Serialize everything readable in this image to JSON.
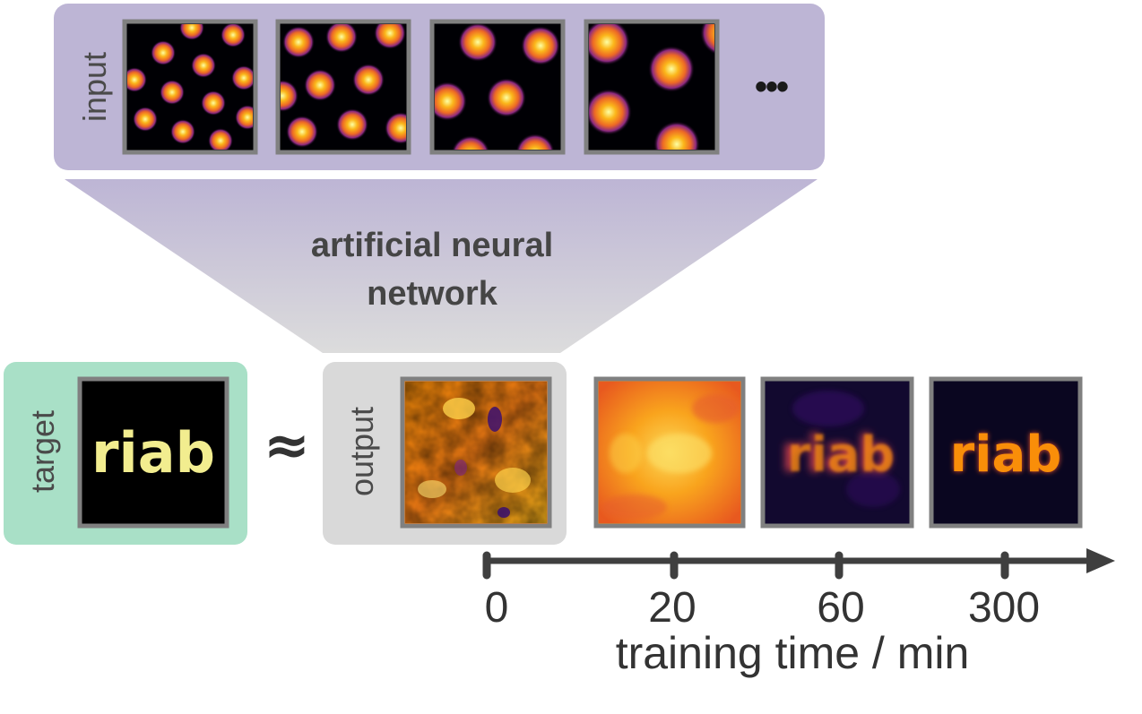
{
  "input_panel": {
    "label": "input",
    "ellipsis": "•••",
    "color": "#bdb5d5"
  },
  "network": {
    "line1": "artificial neural",
    "line2": "network"
  },
  "target_panel": {
    "label": "target",
    "text": "riab",
    "color": "#a9e0c7",
    "text_color": "#f2ed8f"
  },
  "approx_symbol": "≈",
  "output_panel": {
    "label": "output",
    "color": "#d9d9d9"
  },
  "training_axis": {
    "ticks": [
      "0",
      "20",
      "60",
      "300"
    ],
    "title": "training time / min"
  },
  "snapshot_text": "riab"
}
